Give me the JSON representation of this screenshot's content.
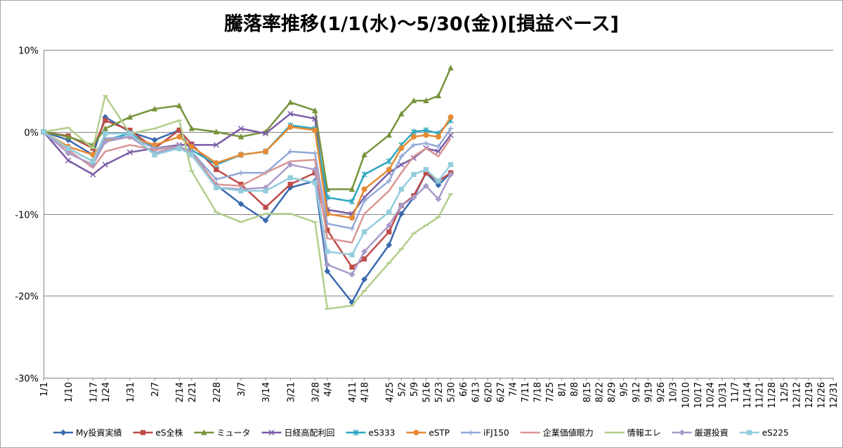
{
  "chart_data": {
    "type": "line",
    "title": "騰落率推移(1/1(水)～5/30(金))[損益ベース]",
    "xlabel": "",
    "ylabel": "",
    "ylim": [
      -0.3,
      0.1
    ],
    "yticks": [
      -0.3,
      -0.2,
      -0.1,
      0.0,
      0.1
    ],
    "ytick_labels": [
      "-30%",
      "-20%",
      "-10%",
      "0%",
      "10%"
    ],
    "grid": "horizontal",
    "legend_position": "bottom",
    "categories": [
      "1/1",
      "1/6",
      "1/10",
      "1/14",
      "1/17",
      "1/24",
      "1/27",
      "1/31",
      "2/3",
      "2/7",
      "2/10",
      "2/14",
      "2/21",
      "2/25",
      "2/28",
      "3/3",
      "3/7",
      "3/10",
      "3/14",
      "3/17",
      "3/21",
      "3/24",
      "3/28",
      "4/4",
      "4/7",
      "4/11",
      "4/18",
      "4/21",
      "4/25",
      "5/2",
      "5/9",
      "5/16",
      "5/23",
      "5/30",
      "6/6",
      "6/13",
      "6/20",
      "6/27",
      "7/4",
      "7/11",
      "7/18",
      "7/25",
      "8/1",
      "8/8",
      "8/15",
      "8/22",
      "8/29",
      "9/5",
      "9/12",
      "9/19",
      "9/26",
      "10/3",
      "10/10",
      "10/17",
      "10/24",
      "10/31",
      "11/7",
      "11/14",
      "11/21",
      "11/28",
      "12/5",
      "12/12",
      "12/19",
      "12/26",
      "12/31"
    ],
    "x_tick_labels": [
      "1/1",
      "1/10",
      "1/17",
      "1/24",
      "1/31",
      "2/7",
      "2/14",
      "2/21",
      "2/28",
      "3/7",
      "3/14",
      "3/21",
      "3/28",
      "4/4",
      "4/11",
      "4/18",
      "4/25",
      "5/2",
      "5/9",
      "5/16",
      "5/23",
      "5/30",
      "6/6",
      "6/13",
      "6/20",
      "6/27",
      "7/4",
      "7/11",
      "7/18",
      "7/25",
      "8/1",
      "8/8",
      "8/15",
      "8/22",
      "8/29",
      "9/5",
      "9/12",
      "9/19",
      "9/26",
      "10/3",
      "10/10",
      "10/17",
      "10/24",
      "10/31",
      "11/7",
      "11/14",
      "11/21",
      "11/28",
      "12/5",
      "12/12",
      "12/19",
      "12/26",
      "12/31"
    ],
    "series": [
      {
        "name": "My投資実績",
        "color": "#3B6AB0",
        "marker": "diamond",
        "points": [
          [
            "1/1",
            0.0
          ],
          [
            "1/10",
            -0.01
          ],
          [
            "1/17",
            -0.028
          ],
          [
            "1/24",
            0.018
          ],
          [
            "1/31",
            0.0
          ],
          [
            "2/7",
            -0.01
          ],
          [
            "2/14",
            0.002
          ],
          [
            "2/21",
            -0.024
          ],
          [
            "2/28",
            -0.065
          ],
          [
            "3/7",
            -0.088
          ],
          [
            "3/14",
            -0.108
          ],
          [
            "3/21",
            -0.068
          ],
          [
            "3/28",
            -0.06
          ],
          [
            "4/4",
            -0.17
          ],
          [
            "4/11",
            -0.208
          ],
          [
            "4/18",
            -0.18
          ],
          [
            "4/25",
            -0.138
          ],
          [
            "5/2",
            -0.1
          ],
          [
            "5/9",
            -0.08
          ],
          [
            "5/16",
            -0.05
          ],
          [
            "5/23",
            -0.065
          ],
          [
            "5/30",
            -0.05
          ]
        ]
      },
      {
        "name": "eS全株",
        "color": "#BE4B48",
        "marker": "square",
        "points": [
          [
            "1/1",
            0.0
          ],
          [
            "1/10",
            -0.005
          ],
          [
            "1/17",
            -0.02
          ],
          [
            "1/24",
            0.014
          ],
          [
            "1/31",
            0.002
          ],
          [
            "2/7",
            -0.02
          ],
          [
            "2/14",
            0.002
          ],
          [
            "2/21",
            -0.015
          ],
          [
            "2/28",
            -0.046
          ],
          [
            "3/7",
            -0.064
          ],
          [
            "3/14",
            -0.092
          ],
          [
            "3/21",
            -0.064
          ],
          [
            "3/28",
            -0.05
          ],
          [
            "4/4",
            -0.12
          ],
          [
            "4/11",
            -0.165
          ],
          [
            "4/18",
            -0.155
          ],
          [
            "4/25",
            -0.122
          ],
          [
            "5/2",
            -0.09
          ],
          [
            "5/9",
            -0.078
          ],
          [
            "5/16",
            -0.05
          ],
          [
            "5/23",
            -0.06
          ],
          [
            "5/30",
            -0.05
          ]
        ]
      },
      {
        "name": "ミュータ",
        "color": "#77933C",
        "marker": "triangle",
        "points": [
          [
            "1/1",
            0.0
          ],
          [
            "1/10",
            -0.006
          ],
          [
            "1/17",
            -0.016
          ],
          [
            "1/24",
            0.004
          ],
          [
            "1/31",
            0.018
          ],
          [
            "2/7",
            0.028
          ],
          [
            "2/14",
            0.032
          ],
          [
            "2/21",
            0.004
          ],
          [
            "2/28",
            0.0
          ],
          [
            "3/7",
            -0.006
          ],
          [
            "3/14",
            0.0
          ],
          [
            "3/21",
            0.036
          ],
          [
            "3/28",
            0.026
          ],
          [
            "4/4",
            -0.07
          ],
          [
            "4/11",
            -0.07
          ],
          [
            "4/18",
            -0.028
          ],
          [
            "4/25",
            -0.004
          ],
          [
            "5/2",
            0.022
          ],
          [
            "5/9",
            0.038
          ],
          [
            "5/16",
            0.038
          ],
          [
            "5/23",
            0.044
          ],
          [
            "5/30",
            0.078
          ]
        ]
      },
      {
        "name": "日経高配利回",
        "color": "#7A5CA6",
        "marker": "x",
        "points": [
          [
            "1/1",
            0.0
          ],
          [
            "1/10",
            -0.035
          ],
          [
            "1/17",
            -0.052
          ],
          [
            "1/24",
            -0.04
          ],
          [
            "1/31",
            -0.025
          ],
          [
            "2/7",
            -0.02
          ],
          [
            "2/14",
            -0.016
          ],
          [
            "2/21",
            -0.016
          ],
          [
            "2/28",
            -0.016
          ],
          [
            "3/7",
            0.004
          ],
          [
            "3/14",
            -0.002
          ],
          [
            "3/21",
            0.022
          ],
          [
            "3/28",
            0.016
          ],
          [
            "4/4",
            -0.095
          ],
          [
            "4/11",
            -0.1
          ],
          [
            "4/18",
            -0.08
          ],
          [
            "4/25",
            -0.05
          ],
          [
            "5/2",
            -0.04
          ],
          [
            "5/9",
            -0.032
          ],
          [
            "5/16",
            -0.02
          ],
          [
            "5/23",
            -0.024
          ],
          [
            "5/30",
            -0.004
          ]
        ]
      },
      {
        "name": "eS333",
        "color": "#2EA6BF",
        "marker": "star",
        "points": [
          [
            "1/1",
            0.0
          ],
          [
            "1/10",
            -0.02
          ],
          [
            "1/17",
            -0.036
          ],
          [
            "1/24",
            -0.01
          ],
          [
            "1/31",
            -0.002
          ],
          [
            "2/7",
            -0.02
          ],
          [
            "2/14",
            -0.02
          ],
          [
            "2/21",
            -0.022
          ],
          [
            "2/28",
            -0.04
          ],
          [
            "3/7",
            -0.028
          ],
          [
            "3/14",
            -0.024
          ],
          [
            "3/21",
            0.008
          ],
          [
            "3/28",
            0.004
          ],
          [
            "4/4",
            -0.08
          ],
          [
            "4/11",
            -0.085
          ],
          [
            "4/18",
            -0.052
          ],
          [
            "4/25",
            -0.036
          ],
          [
            "5/2",
            -0.016
          ],
          [
            "5/9",
            0.0
          ],
          [
            "5/16",
            0.002
          ],
          [
            "5/23",
            -0.002
          ],
          [
            "5/30",
            0.014
          ]
        ]
      },
      {
        "name": "eSTP",
        "color": "#E68B34",
        "marker": "circle",
        "points": [
          [
            "1/1",
            0.0
          ],
          [
            "1/10",
            -0.018
          ],
          [
            "1/17",
            -0.028
          ],
          [
            "1/24",
            -0.01
          ],
          [
            "1/31",
            -0.006
          ],
          [
            "2/7",
            -0.016
          ],
          [
            "2/14",
            -0.006
          ],
          [
            "2/21",
            -0.018
          ],
          [
            "2/28",
            -0.038
          ],
          [
            "3/7",
            -0.028
          ],
          [
            "3/14",
            -0.024
          ],
          [
            "3/21",
            0.006
          ],
          [
            "3/28",
            0.002
          ],
          [
            "4/4",
            -0.1
          ],
          [
            "4/11",
            -0.105
          ],
          [
            "4/18",
            -0.07
          ],
          [
            "4/25",
            -0.046
          ],
          [
            "5/2",
            -0.02
          ],
          [
            "5/9",
            -0.006
          ],
          [
            "5/16",
            -0.004
          ],
          [
            "5/23",
            -0.006
          ],
          [
            "5/30",
            0.018
          ]
        ]
      },
      {
        "name": "iFJ150",
        "color": "#92A9D7",
        "marker": "plus",
        "points": [
          [
            "1/1",
            0.0
          ],
          [
            "1/10",
            -0.02
          ],
          [
            "1/17",
            -0.036
          ],
          [
            "1/24",
            -0.008
          ],
          [
            "1/31",
            -0.006
          ],
          [
            "2/7",
            -0.02
          ],
          [
            "2/14",
            -0.018
          ],
          [
            "2/21",
            -0.024
          ],
          [
            "2/28",
            -0.058
          ],
          [
            "3/7",
            -0.05
          ],
          [
            "3/14",
            -0.05
          ],
          [
            "3/21",
            -0.024
          ],
          [
            "3/28",
            -0.026
          ],
          [
            "4/4",
            -0.112
          ],
          [
            "4/11",
            -0.118
          ],
          [
            "4/18",
            -0.084
          ],
          [
            "4/25",
            -0.06
          ],
          [
            "5/2",
            -0.03
          ],
          [
            "5/9",
            -0.016
          ],
          [
            "5/16",
            -0.014
          ],
          [
            "5/23",
            -0.018
          ],
          [
            "5/30",
            0.004
          ]
        ]
      },
      {
        "name": "企業価値眼力",
        "color": "#D99694",
        "marker": "none",
        "points": [
          [
            "1/1",
            0.0
          ],
          [
            "1/10",
            -0.022
          ],
          [
            "1/17",
            -0.044
          ],
          [
            "1/24",
            -0.024
          ],
          [
            "1/31",
            -0.016
          ],
          [
            "2/7",
            -0.022
          ],
          [
            "2/14",
            -0.018
          ],
          [
            "2/21",
            -0.026
          ],
          [
            "2/28",
            -0.064
          ],
          [
            "3/7",
            -0.066
          ],
          [
            "3/14",
            -0.05
          ],
          [
            "3/21",
            -0.036
          ],
          [
            "3/28",
            -0.034
          ],
          [
            "4/4",
            -0.13
          ],
          [
            "4/11",
            -0.135
          ],
          [
            "4/18",
            -0.1
          ],
          [
            "4/25",
            -0.072
          ],
          [
            "5/2",
            -0.05
          ],
          [
            "5/9",
            -0.03
          ],
          [
            "5/16",
            -0.02
          ],
          [
            "5/23",
            -0.03
          ],
          [
            "5/30",
            -0.008
          ]
        ]
      },
      {
        "name": "情報エレ",
        "color": "#B3CE8C",
        "marker": "dash",
        "points": [
          [
            "1/1",
            0.0
          ],
          [
            "1/10",
            0.005
          ],
          [
            "1/17",
            -0.02
          ],
          [
            "1/24",
            0.044
          ],
          [
            "1/31",
            -0.002
          ],
          [
            "2/7",
            0.004
          ],
          [
            "2/14",
            0.014
          ],
          [
            "2/21",
            -0.048
          ],
          [
            "2/28",
            -0.098
          ],
          [
            "3/7",
            -0.11
          ],
          [
            "3/14",
            -0.1
          ],
          [
            "3/21",
            -0.1
          ],
          [
            "3/28",
            -0.11
          ],
          [
            "4/4",
            -0.216
          ],
          [
            "4/11",
            -0.212
          ],
          [
            "4/18",
            -0.194
          ],
          [
            "4/25",
            -0.16
          ],
          [
            "5/2",
            -0.143
          ],
          [
            "5/9",
            -0.124
          ],
          [
            "5/16",
            -0.114
          ],
          [
            "5/23",
            -0.104
          ],
          [
            "5/30",
            -0.076
          ]
        ]
      },
      {
        "name": "厳選投資",
        "color": "#A99BC9",
        "marker": "diamond",
        "points": [
          [
            "1/1",
            0.0
          ],
          [
            "1/10",
            -0.026
          ],
          [
            "1/17",
            -0.04
          ],
          [
            "1/24",
            -0.012
          ],
          [
            "1/31",
            -0.006
          ],
          [
            "2/7",
            -0.026
          ],
          [
            "2/14",
            -0.018
          ],
          [
            "2/21",
            -0.028
          ],
          [
            "2/28",
            -0.068
          ],
          [
            "3/7",
            -0.07
          ],
          [
            "3/14",
            -0.068
          ],
          [
            "3/21",
            -0.04
          ],
          [
            "3/28",
            -0.046
          ],
          [
            "4/4",
            -0.162
          ],
          [
            "4/11",
            -0.174
          ],
          [
            "4/18",
            -0.146
          ],
          [
            "4/25",
            -0.114
          ],
          [
            "5/2",
            -0.09
          ],
          [
            "5/9",
            -0.08
          ],
          [
            "5/16",
            -0.066
          ],
          [
            "5/23",
            -0.082
          ],
          [
            "5/30",
            -0.052
          ]
        ]
      },
      {
        "name": "eS225",
        "color": "#93CDDD",
        "marker": "square",
        "points": [
          [
            "1/1",
            0.0
          ],
          [
            "1/10",
            -0.02
          ],
          [
            "1/17",
            -0.036
          ],
          [
            "1/24",
            -0.002
          ],
          [
            "1/31",
            -0.002
          ],
          [
            "2/7",
            -0.028
          ],
          [
            "2/14",
            -0.02
          ],
          [
            "2/21",
            -0.028
          ],
          [
            "2/28",
            -0.068
          ],
          [
            "3/7",
            -0.072
          ],
          [
            "3/14",
            -0.072
          ],
          [
            "3/21",
            -0.056
          ],
          [
            "3/28",
            -0.062
          ],
          [
            "4/4",
            -0.146
          ],
          [
            "4/11",
            -0.15
          ],
          [
            "4/18",
            -0.122
          ],
          [
            "4/25",
            -0.098
          ],
          [
            "5/2",
            -0.07
          ],
          [
            "5/9",
            -0.052
          ],
          [
            "5/16",
            -0.046
          ],
          [
            "5/23",
            -0.06
          ],
          [
            "5/30",
            -0.04
          ]
        ]
      }
    ]
  }
}
